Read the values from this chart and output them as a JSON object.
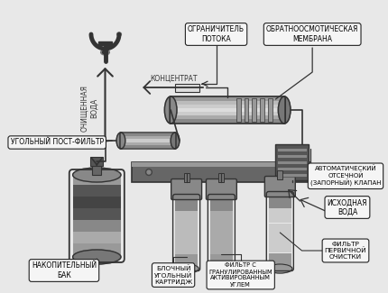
{
  "bg_color": "#e8e8e8",
  "labels": {
    "ogranichitel": "ОГРАНИЧИТЕЛЬ\nПОТОКА",
    "membrana": "ОБРАТНООСМОТИЧЕСКАЯ\nМЕМБРАНА",
    "koncentrat": "КОНЦЕНТРАТ",
    "ugolny_post": "УГОЛЬНЫЙ ПОСТ-ФИЛЬТР",
    "ochistka_voda": "ОЧИЩЕННАЯ\nВОДА",
    "avto_klapan": "АВТОМАТИЧЕСКИЙ\nОТСЕЧНОЙ\n(ЗАПОРНЫЙ) КЛАПАН",
    "nakopitelny": "НАКОПИТЕЛЬНЫЙ\nБАК",
    "blochny": "БЛОЧНЫЙ\nУГОЛЬНЫЙ\nКАРТРИДЖ",
    "filtr_gran": "ФИЛЬТР С\nГРАНУЛИРОВАННЫМ\nАКТИВИРОВАННЫМ\nУГЛЕМ",
    "filtr_perv": "ФИЛЬТР\nПЕРВИЧНОЙ\nОЧИСТКИ",
    "ishodnaya": "ИСХОДНАЯ\nВОДА"
  },
  "box_color": "#f5f5f5",
  "box_edge": "#222222",
  "line_color": "#222222",
  "dark_color": "#333333",
  "mid_color": "#777777",
  "light_color": "#bbbbbb",
  "very_light": "#dddddd"
}
